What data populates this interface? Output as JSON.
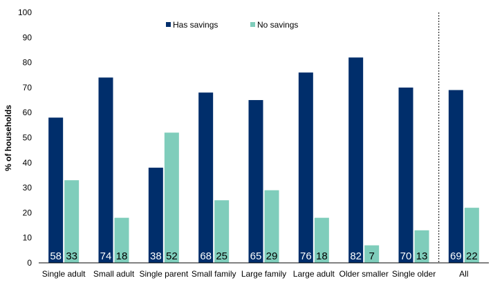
{
  "chart_data": {
    "type": "bar",
    "ylabel": "% of households",
    "ylim": [
      0,
      100
    ],
    "yticks": [
      "0",
      "10",
      "20",
      "30",
      "40",
      "50",
      "60",
      "70",
      "80",
      "90",
      "100"
    ],
    "categories": [
      "Single adult",
      "Small adult",
      "Single parent",
      "Small family",
      "Large family",
      "Large adult",
      "Older smaller",
      "Single older",
      "All"
    ],
    "series": [
      {
        "name": "Has savings",
        "color": "#002e6b",
        "label_color": "#ffffff",
        "values": [
          58,
          74,
          38,
          68,
          65,
          76,
          82,
          70,
          69
        ],
        "labels": [
          "58",
          "74",
          "38",
          "68",
          "65",
          "76",
          "82",
          "70",
          "69"
        ]
      },
      {
        "name": "No savings",
        "color": "#7fcdbb",
        "label_color": "#000000",
        "values": [
          33,
          18,
          52,
          25,
          29,
          18,
          7,
          13,
          22
        ],
        "labels": [
          "33",
          "18",
          "52",
          "25",
          "29",
          "18",
          "7",
          "13",
          "22"
        ]
      }
    ],
    "separator_before_category": "All",
    "legend_position": "top-center",
    "grid": false
  }
}
